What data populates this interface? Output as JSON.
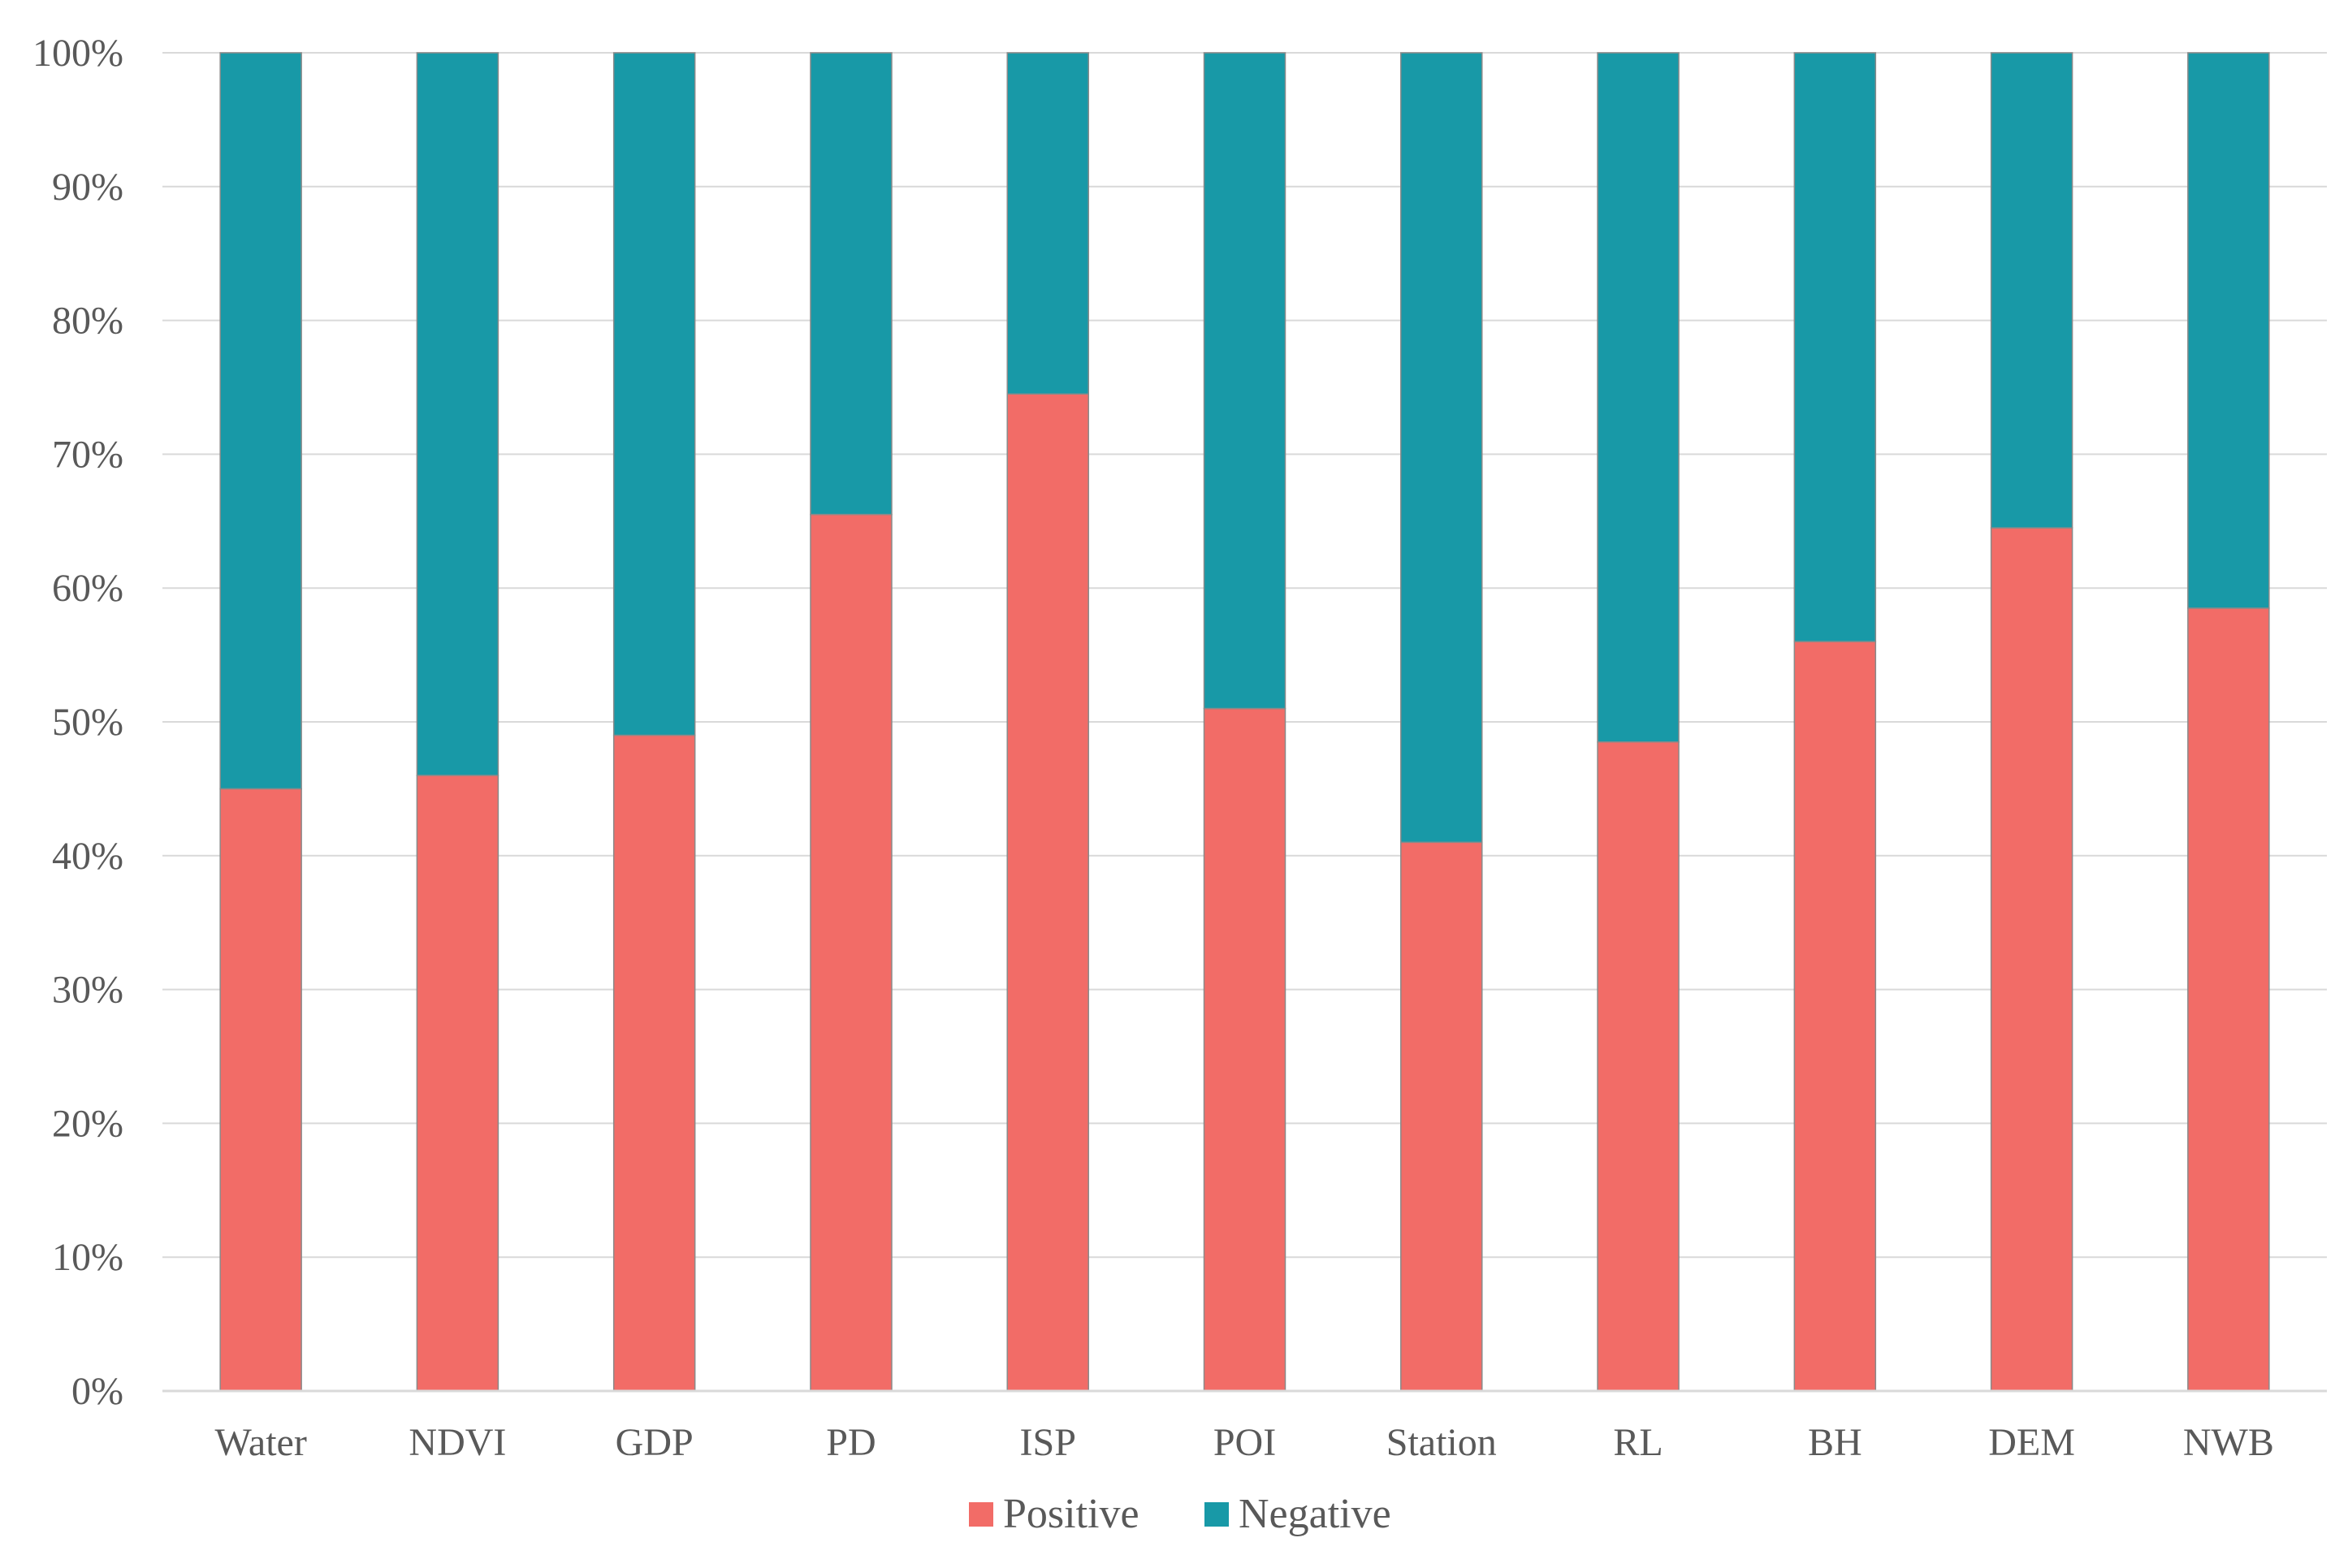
{
  "chart_data": {
    "type": "bar",
    "stacked": "percent",
    "categories": [
      "Water",
      "NDVI",
      "GDP",
      "PD",
      "ISP",
      "POI",
      "Station",
      "RL",
      "BH",
      "DEM",
      "NWB"
    ],
    "series": [
      {
        "name": "Positive",
        "color": "#F26C67",
        "values": [
          45,
          46,
          49,
          65.5,
          74.5,
          51,
          41,
          48.5,
          56,
          64.5,
          58.5
        ]
      },
      {
        "name": "Negative",
        "color": "#1899A7",
        "values": [
          55,
          54,
          51,
          34.5,
          25.5,
          49,
          59,
          51.5,
          44,
          35.5,
          41.5
        ]
      }
    ],
    "ylim": [
      0,
      100
    ],
    "yticks": [
      "0%",
      "10%",
      "20%",
      "30%",
      "40%",
      "50%",
      "60%",
      "70%",
      "80%",
      "90%",
      "100%"
    ],
    "grid": true,
    "legend_position": "bottom-center",
    "title": "",
    "xlabel": "",
    "ylabel": ""
  }
}
